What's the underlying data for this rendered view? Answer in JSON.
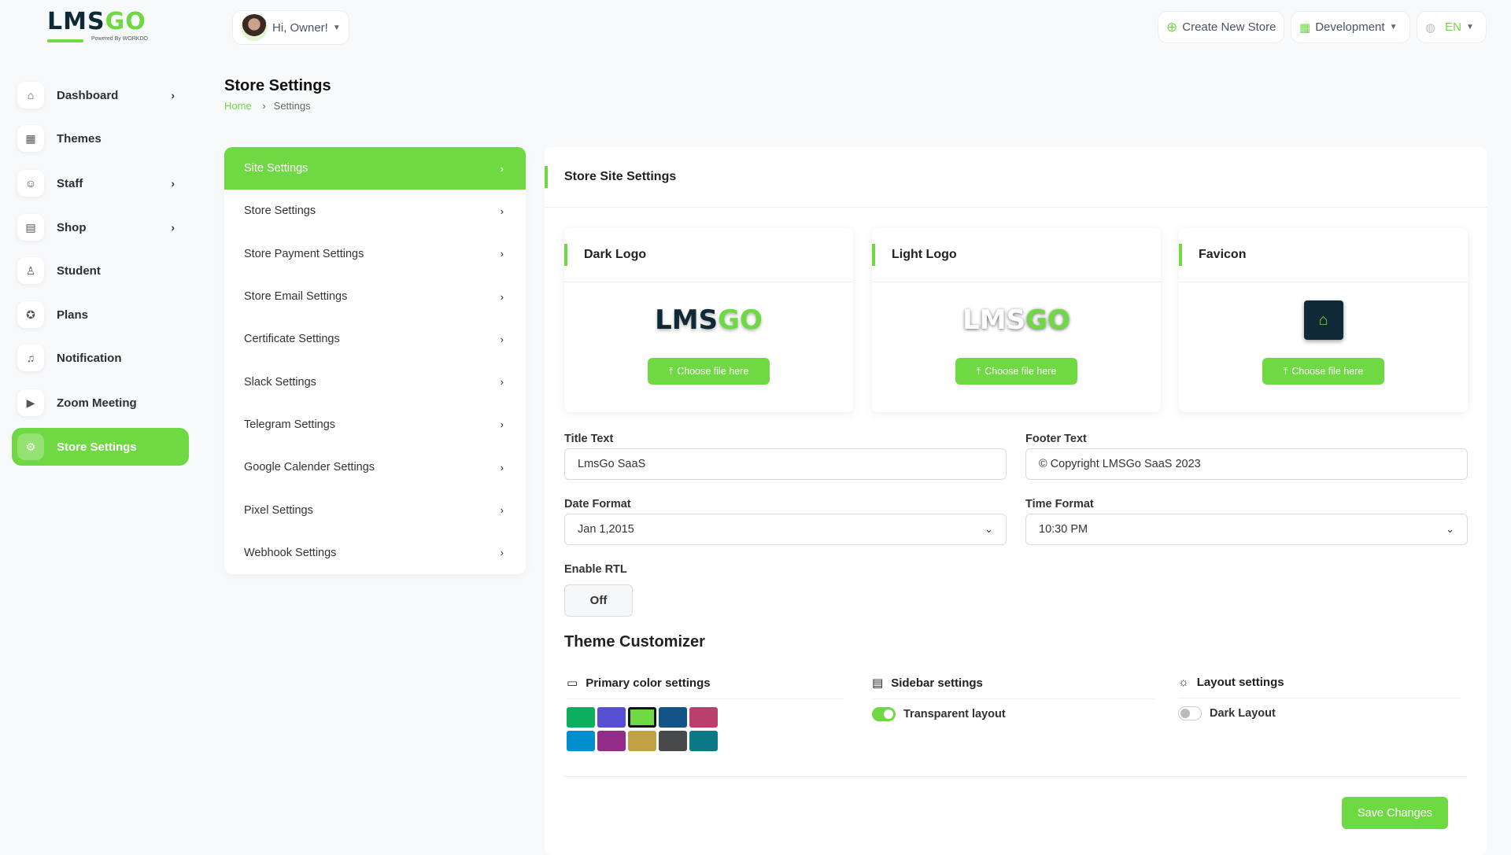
{
  "brand": {
    "logo_text_dark": "LMS",
    "logo_text_green": "GO",
    "powered": "Powered By WORKDO",
    "accent": "#6fd943"
  },
  "header": {
    "greeting": "Hi, Owner!",
    "create_store": "Create New Store",
    "store_select": "Development",
    "language": "EN"
  },
  "sidebar": {
    "items": [
      {
        "label": "Dashboard",
        "icon": "home-icon",
        "arrow": true
      },
      {
        "label": "Themes",
        "icon": "grid-icon",
        "arrow": false
      },
      {
        "label": "Staff",
        "icon": "users-icon",
        "arrow": true
      },
      {
        "label": "Shop",
        "icon": "shop-icon",
        "arrow": true
      },
      {
        "label": "Student",
        "icon": "user-icon",
        "arrow": false
      },
      {
        "label": "Plans",
        "icon": "award-icon",
        "arrow": false
      },
      {
        "label": "Notification",
        "icon": "bell-icon",
        "arrow": false
      },
      {
        "label": "Zoom Meeting",
        "icon": "video-icon",
        "arrow": false
      },
      {
        "label": "Store Settings",
        "icon": "gear-icon",
        "arrow": false,
        "active": true
      }
    ]
  },
  "page": {
    "title": "Store Settings",
    "breadcrumb": [
      "Home",
      "Settings"
    ]
  },
  "settings_menu": [
    "Site Settings",
    "Store Settings",
    "Store Payment Settings",
    "Store Email Settings",
    "Certificate Settings",
    "Slack Settings",
    "Telegram Settings",
    "Google Calender Settings",
    "Pixel Settings",
    "Webhook Settings"
  ],
  "main": {
    "title": "Store Site Settings",
    "logos": [
      {
        "title": "Dark Logo"
      },
      {
        "title": "Light Logo"
      },
      {
        "title": "Favicon"
      }
    ],
    "choose_file": "Choose file here",
    "title_text": {
      "label": "Title Text",
      "value": "LmsGo SaaS"
    },
    "footer_text": {
      "label": "Footer Text",
      "value": "© Copyright LMSGo SaaS 2023"
    },
    "date_format": {
      "label": "Date Format",
      "value": "Jan 1,2015"
    },
    "time_format": {
      "label": "Time Format",
      "value": "10:30 PM"
    },
    "rtl": {
      "label": "Enable RTL",
      "value": "Off"
    },
    "theme": {
      "title": "Theme Customizer",
      "primary": "Primary color settings",
      "sidebar": "Sidebar settings",
      "layout": "Layout settings",
      "colors": [
        "#0caf60",
        "#584ed2",
        "#6fd943",
        "#145388",
        "#b9406b",
        "#008ecc",
        "#922c88",
        "#c0a145",
        "#48494b",
        "#0c7785"
      ],
      "selected_color": "#6fd943",
      "transparent_layout": {
        "label": "Transparent layout",
        "on": true
      },
      "dark_layout": {
        "label": "Dark Layout",
        "on": false
      }
    },
    "save": "Save Changes"
  }
}
